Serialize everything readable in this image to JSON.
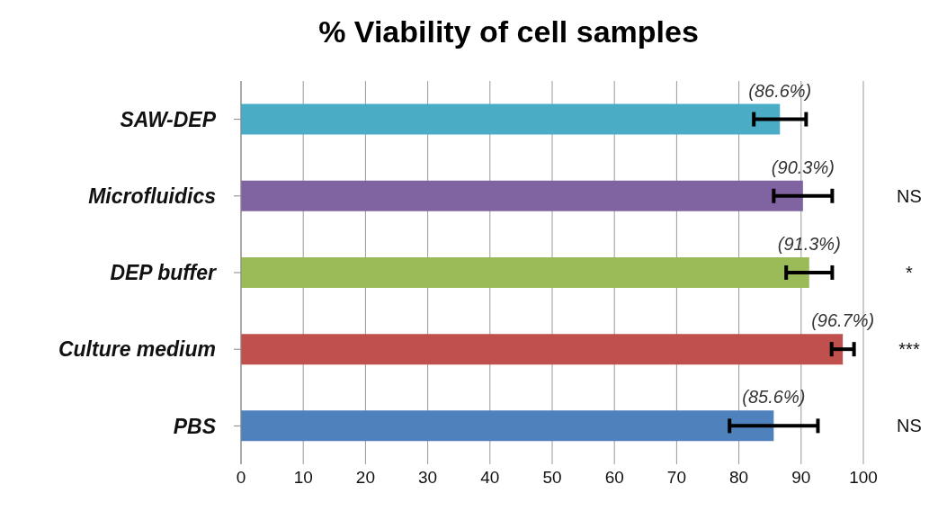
{
  "chart_data": {
    "type": "bar",
    "orientation": "horizontal",
    "title": "% Viability of cell samples",
    "categories": [
      "SAW-DEP",
      "Microfluidics",
      "DEP buffer",
      "Culture medium",
      "PBS"
    ],
    "values": [
      86.6,
      90.3,
      91.3,
      96.7,
      85.6
    ],
    "colors": [
      "#4bacc6",
      "#8064a2",
      "#9bbb59",
      "#c0504d",
      "#4f81bd"
    ],
    "errors": [
      4.2,
      4.7,
      3.7,
      1.8,
      7.1
    ],
    "value_labels": [
      "(86.6%)",
      "(90.3%)",
      "(91.3%)",
      "(96.7%)",
      "(85.6%)"
    ],
    "xlim": [
      0,
      100
    ],
    "xticks": [
      0,
      10,
      20,
      30,
      40,
      50,
      60,
      70,
      80,
      90,
      100
    ],
    "grid": "x",
    "legend": false,
    "annotations": [
      "NS",
      "*",
      "***",
      "NS"
    ]
  }
}
